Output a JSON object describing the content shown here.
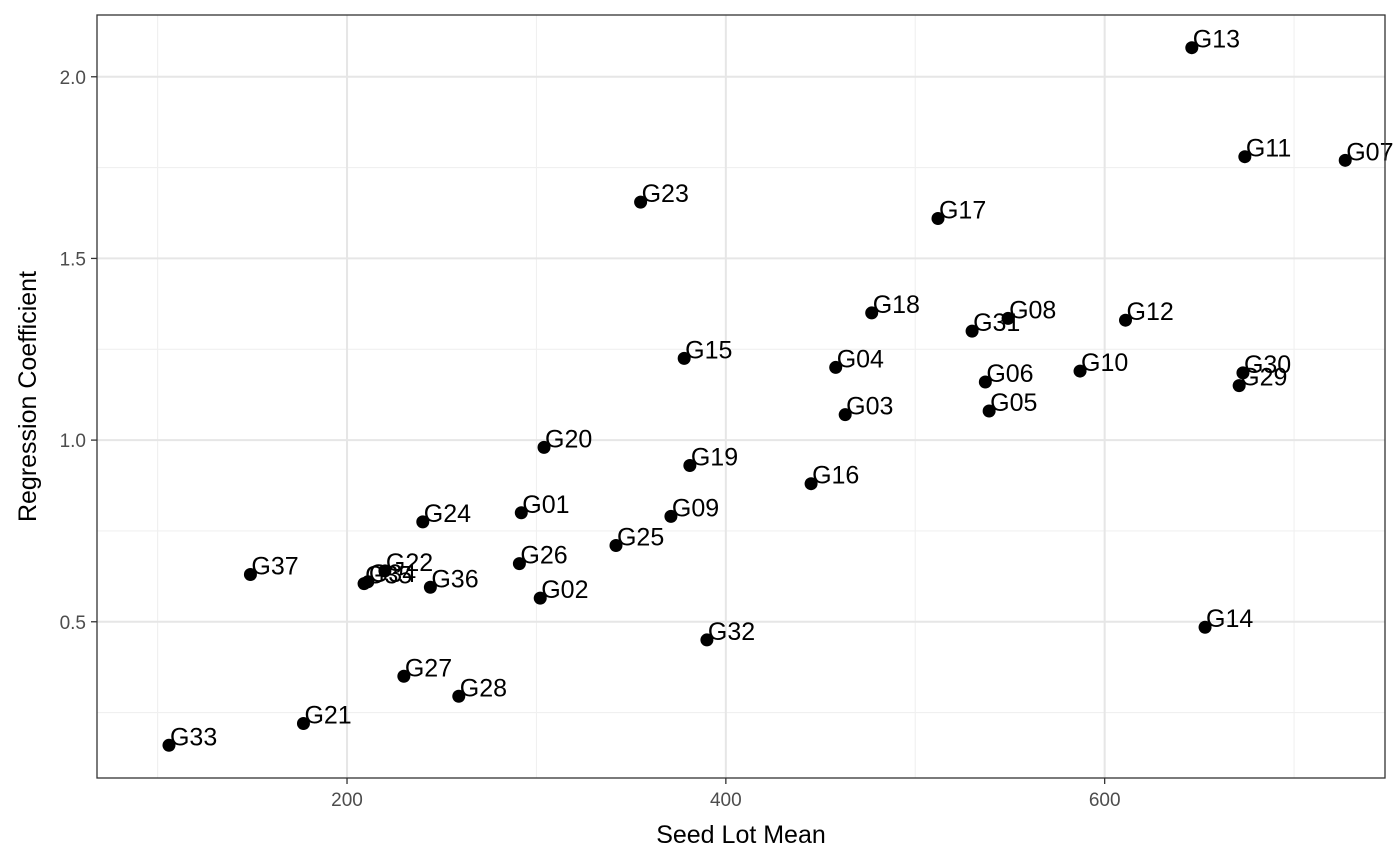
{
  "chart_data": {
    "type": "scatter",
    "xlabel": "Seed Lot Mean",
    "ylabel": "Regression Coefficient",
    "xlim": [
      68,
      748
    ],
    "ylim": [
      0.07,
      2.17
    ],
    "x_ticks": [
      200,
      400,
      600
    ],
    "x_minor_ticks": [
      100,
      300,
      500,
      700
    ],
    "y_ticks": [
      0.5,
      1.0,
      1.5,
      2.0
    ],
    "y_minor_ticks": [
      0.25,
      0.75,
      1.25,
      1.75
    ],
    "y_tick_labels": [
      "0.5",
      "1.0",
      "1.5",
      "2.0"
    ],
    "grid": true,
    "point_color": "#000000",
    "points": [
      {
        "label": "G01",
        "x": 292,
        "y": 0.8
      },
      {
        "label": "G02",
        "x": 302,
        "y": 0.565
      },
      {
        "label": "G03",
        "x": 463,
        "y": 1.07
      },
      {
        "label": "G04",
        "x": 458,
        "y": 1.2
      },
      {
        "label": "G05",
        "x": 539,
        "y": 1.08
      },
      {
        "label": "G06",
        "x": 537,
        "y": 1.16
      },
      {
        "label": "G07",
        "x": 727,
        "y": 1.77
      },
      {
        "label": "G08",
        "x": 549,
        "y": 1.335
      },
      {
        "label": "G09",
        "x": 371,
        "y": 0.79
      },
      {
        "label": "G10",
        "x": 587,
        "y": 1.19
      },
      {
        "label": "G11",
        "x": 674,
        "y": 1.78
      },
      {
        "label": "G12",
        "x": 611,
        "y": 1.33
      },
      {
        "label": "G13",
        "x": 646,
        "y": 2.08
      },
      {
        "label": "G14",
        "x": 653,
        "y": 0.485
      },
      {
        "label": "G15",
        "x": 378,
        "y": 1.225
      },
      {
        "label": "G16",
        "x": 445,
        "y": 0.88
      },
      {
        "label": "G17",
        "x": 512,
        "y": 1.61
      },
      {
        "label": "G18",
        "x": 477,
        "y": 1.35
      },
      {
        "label": "G19",
        "x": 381,
        "y": 0.93
      },
      {
        "label": "G20",
        "x": 304,
        "y": 0.98
      },
      {
        "label": "G21",
        "x": 177,
        "y": 0.22
      },
      {
        "label": "G22",
        "x": 220,
        "y": 0.64
      },
      {
        "label": "G23",
        "x": 355,
        "y": 1.655
      },
      {
        "label": "G24",
        "x": 240,
        "y": 0.775
      },
      {
        "label": "G25",
        "x": 342,
        "y": 0.71
      },
      {
        "label": "G26",
        "x": 291,
        "y": 0.66
      },
      {
        "label": "G27",
        "x": 230,
        "y": 0.35
      },
      {
        "label": "G28",
        "x": 259,
        "y": 0.295
      },
      {
        "label": "G29",
        "x": 671,
        "y": 1.15
      },
      {
        "label": "G30",
        "x": 673,
        "y": 1.185
      },
      {
        "label": "G31",
        "x": 530,
        "y": 1.3
      },
      {
        "label": "G32",
        "x": 390,
        "y": 0.45
      },
      {
        "label": "G33",
        "x": 106,
        "y": 0.16
      },
      {
        "label": "G34",
        "x": 211,
        "y": 0.61
      },
      {
        "label": "G35",
        "x": 209,
        "y": 0.605
      },
      {
        "label": "G36",
        "x": 244,
        "y": 0.595
      },
      {
        "label": "G37",
        "x": 149,
        "y": 0.63
      }
    ]
  }
}
